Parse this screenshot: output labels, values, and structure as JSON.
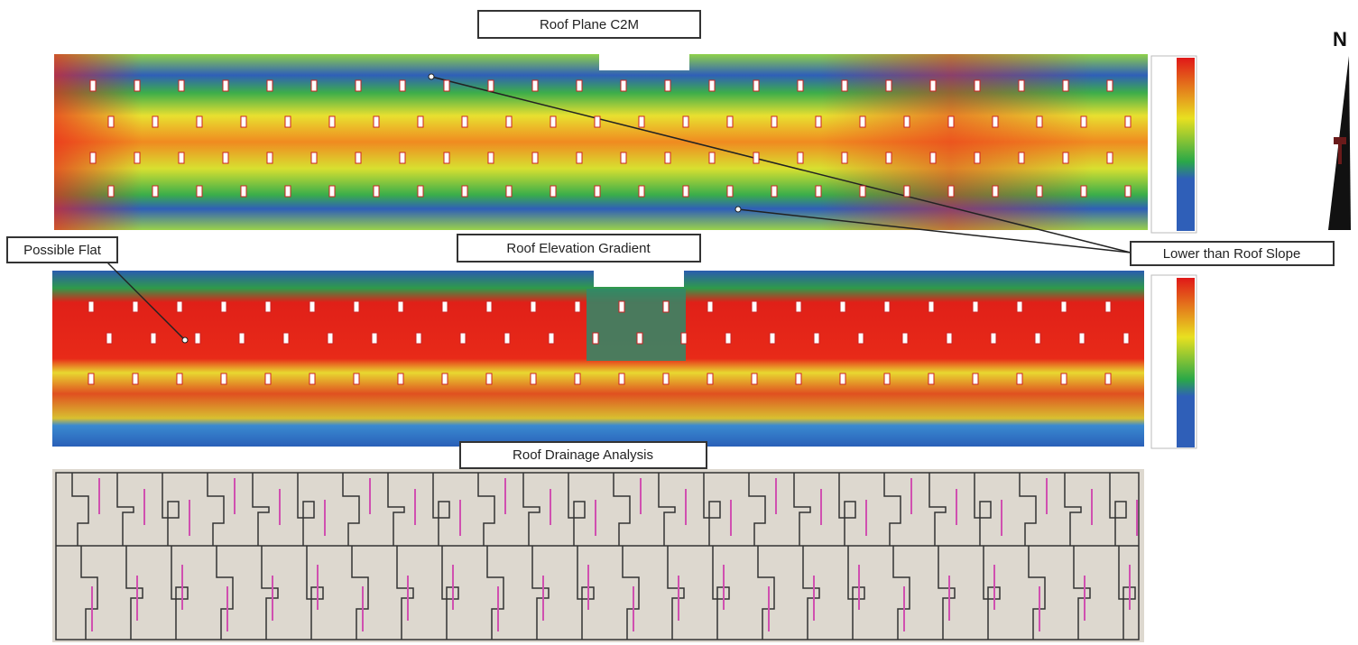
{
  "panels": [
    {
      "title": "Roof Plane C2M"
    },
    {
      "title": "Roof Elevation Gradient"
    },
    {
      "title": "Roof Drainage Analysis"
    }
  ],
  "annotations": [
    {
      "text": "Possible Flat"
    },
    {
      "text": "Lower than Roof Slope"
    }
  ],
  "compass": {
    "label": "N"
  }
}
